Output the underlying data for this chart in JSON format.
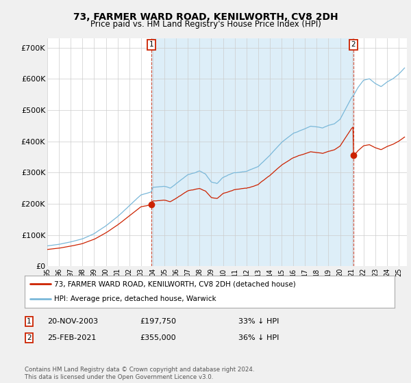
{
  "title": "73, FARMER WARD ROAD, KENILWORTH, CV8 2DH",
  "subtitle": "Price paid vs. HM Land Registry's House Price Index (HPI)",
  "title_fontsize": 10,
  "subtitle_fontsize": 8.5,
  "ylabel_ticks": [
    "£0",
    "£100K",
    "£200K",
    "£300K",
    "£400K",
    "£500K",
    "£600K",
    "£700K"
  ],
  "ytick_vals": [
    0,
    100000,
    200000,
    300000,
    400000,
    500000,
    600000,
    700000
  ],
  "ylim": [
    0,
    730000
  ],
  "hpi_color": "#7ab8d9",
  "hpi_fill_color": "#ddeef8",
  "price_color": "#cc2200",
  "marker1_date": 2003.89,
  "marker1_price": 197750,
  "marker2_date": 2021.14,
  "marker2_price": 355000,
  "legend_line1": "73, FARMER WARD ROAD, KENILWORTH, CV8 2DH (detached house)",
  "legend_line2": "HPI: Average price, detached house, Warwick",
  "footer": "Contains HM Land Registry data © Crown copyright and database right 2024.\nThis data is licensed under the Open Government Licence v3.0.",
  "bg_color": "#f0f0f0",
  "plot_bg_color": "#ffffff",
  "grid_color": "#cccccc",
  "hpi_anchors_years": [
    1995.0,
    1996.0,
    1997.0,
    1998.0,
    1999.0,
    2000.0,
    2001.0,
    2002.0,
    2003.0,
    2003.89,
    2004.0,
    2005.0,
    2005.5,
    2006.0,
    2007.0,
    2008.0,
    2008.5,
    2009.0,
    2009.5,
    2010.0,
    2011.0,
    2012.0,
    2013.0,
    2014.0,
    2015.0,
    2016.0,
    2017.0,
    2017.5,
    2018.0,
    2018.5,
    2019.0,
    2019.5,
    2020.0,
    2021.0,
    2021.14,
    2021.5,
    2022.0,
    2022.5,
    2023.0,
    2023.5,
    2024.0,
    2024.5,
    2025.0,
    2025.5
  ],
  "hpi_anchors_vals": [
    65000,
    70000,
    78000,
    88000,
    105000,
    130000,
    160000,
    195000,
    230000,
    240000,
    255000,
    258000,
    252000,
    265000,
    295000,
    305000,
    295000,
    270000,
    265000,
    285000,
    300000,
    305000,
    320000,
    355000,
    395000,
    425000,
    440000,
    448000,
    445000,
    442000,
    450000,
    455000,
    470000,
    540000,
    545000,
    570000,
    595000,
    600000,
    585000,
    575000,
    590000,
    600000,
    615000,
    635000
  ],
  "hpi_noise_seed": 42,
  "price_noise_seed": 7
}
